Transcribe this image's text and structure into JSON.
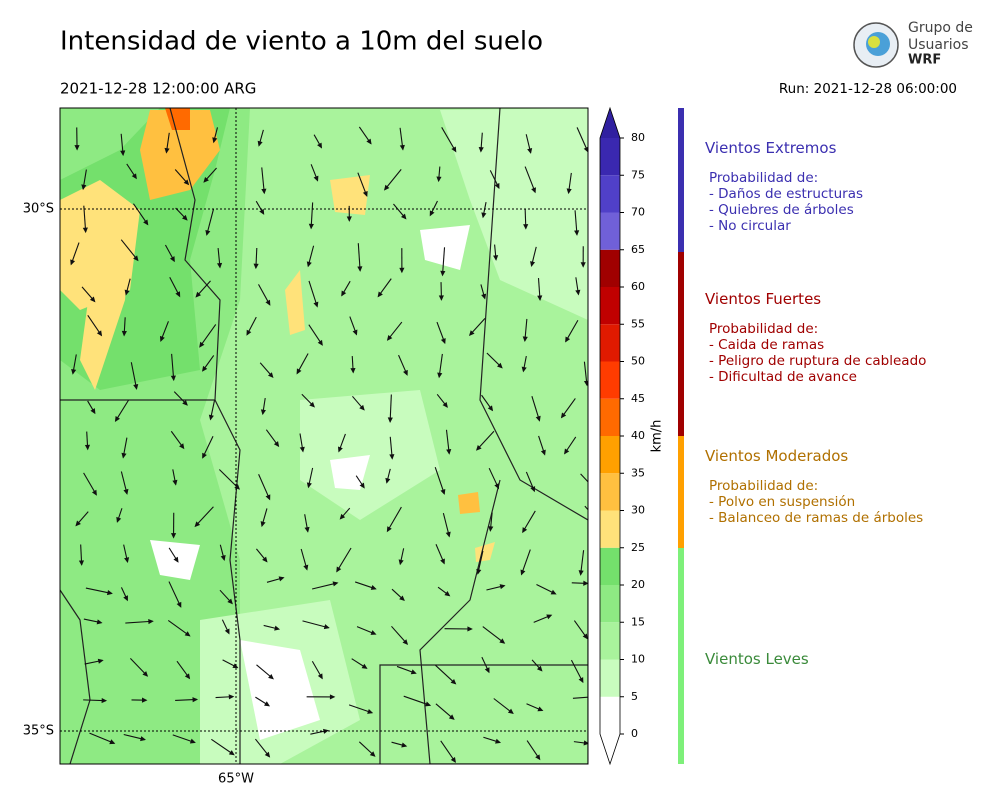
{
  "header": {
    "title": "Intensidad de viento a 10m del suelo",
    "valid_time": "2021-12-28 12:00:00 ARG",
    "run": "Run: 2021-12-28 06:00:00",
    "logo": [
      "Grupo de",
      "Usuarios",
      "WRF"
    ]
  },
  "map": {
    "lat_labels": [
      "30°S",
      "35°S"
    ],
    "lon_labels": [
      "65°W"
    ]
  },
  "colorbar": {
    "label": "km/h",
    "ticks": [
      0,
      5,
      10,
      15,
      20,
      25,
      30,
      35,
      40,
      45,
      50,
      55,
      60,
      65,
      70,
      75,
      80
    ],
    "colors": [
      "#ffffff",
      "#c8fcbe",
      "#a9f39c",
      "#8eea83",
      "#74e06c",
      "#ffe27a",
      "#ffc040",
      "#ffa000",
      "#ff6a00",
      "#ff3c00",
      "#e01a00",
      "#c00000",
      "#a00000",
      "#7060d8",
      "#5040c8",
      "#3a28b0"
    ],
    "over_color": "#3020a0",
    "under_color": "#ffffff"
  },
  "legend": [
    {
      "title": "Vientos Extremos",
      "color": "#3b2fb0",
      "heading": "Probabilidad de:",
      "items": [
        "- Daños de estructuras",
        "- Quiebres de árboles",
        "- No circular"
      ]
    },
    {
      "title": "Vientos Fuertes",
      "color": "#a00000",
      "heading": "Probabilidad de:",
      "items": [
        "- Caida de ramas",
        "- Peligro de ruptura de cableado",
        "- Dificultad de avance"
      ]
    },
    {
      "title": "Vientos Moderados",
      "color": "#b07000",
      "heading": "Probabilidad de:",
      "items": [
        "- Polvo en suspensión",
        "- Balanceo de ramas de árboles"
      ]
    },
    {
      "title": "Vientos Leves",
      "color": "#3a8a3a",
      "heading": null,
      "items": []
    }
  ]
}
